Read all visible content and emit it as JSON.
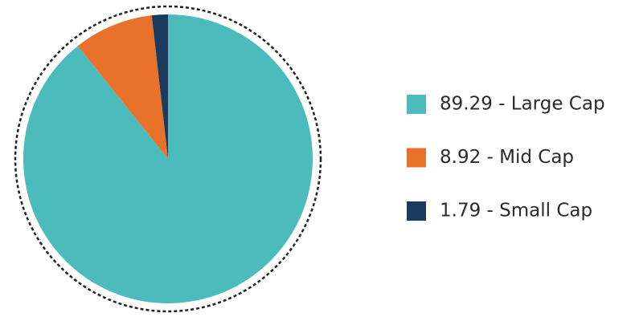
{
  "chart_data": {
    "type": "pie",
    "categories": [
      "89.29 - Large Cap",
      "8.92 - Mid Cap",
      "1.79 - Small Cap"
    ],
    "values": [
      89.29,
      8.92,
      1.79
    ],
    "colors": [
      "#4bbcbb",
      "#e8722a",
      "#1b3a5e"
    ]
  }
}
